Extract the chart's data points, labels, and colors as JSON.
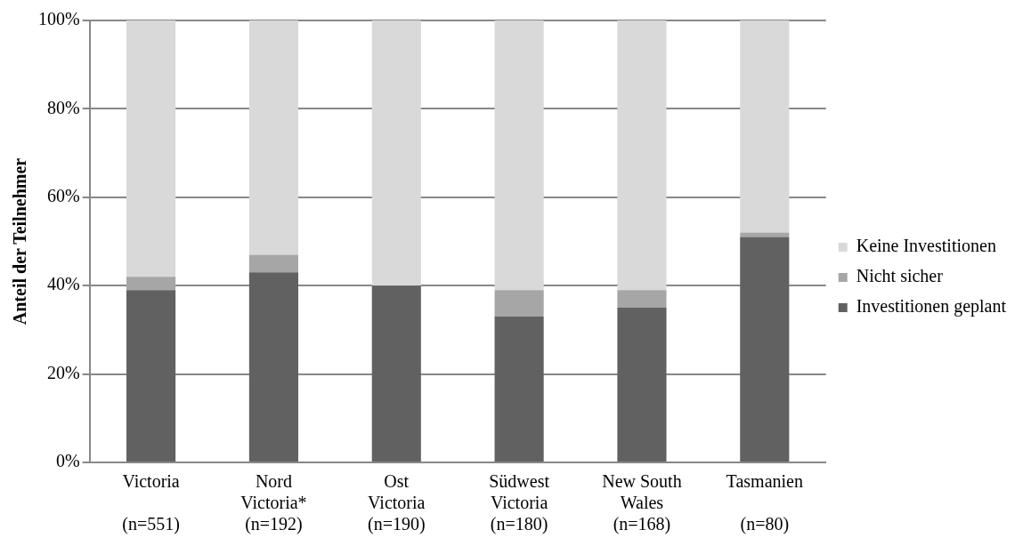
{
  "chart_data": {
    "type": "bar",
    "stacked": true,
    "ylabel": "Anteil der Teilnehmer",
    "categories": [
      "Victoria\n(n=551)",
      "Nord\nVictoria*\n(n=192)",
      "Ost\nVictoria\n(n=190)",
      "Südwest\nVictoria\n(n=180)",
      "New South\nWales\n(n=168)",
      "Tasmanien\n(n=80)"
    ],
    "series": [
      {
        "name": "Investitionen geplant",
        "color": "#616161",
        "values": [
          39,
          43,
          40,
          33,
          35,
          51
        ]
      },
      {
        "name": "Nicht sicher",
        "color": "#a6a6a6",
        "values": [
          3,
          4,
          0,
          6,
          4,
          1
        ]
      },
      {
        "name": "Keine Investitionen",
        "color": "#d9d9d9",
        "values": [
          58,
          53,
          60,
          61,
          61,
          48
        ]
      }
    ],
    "ylim": [
      0,
      100
    ],
    "yticks": [
      {
        "value": 0,
        "label": "0%"
      },
      {
        "value": 20,
        "label": "20%"
      },
      {
        "value": 40,
        "label": "40%"
      },
      {
        "value": 60,
        "label": "60%"
      },
      {
        "value": 80,
        "label": "80%"
      },
      {
        "value": 100,
        "label": "100%"
      }
    ],
    "grid": "y",
    "legend": "right"
  }
}
